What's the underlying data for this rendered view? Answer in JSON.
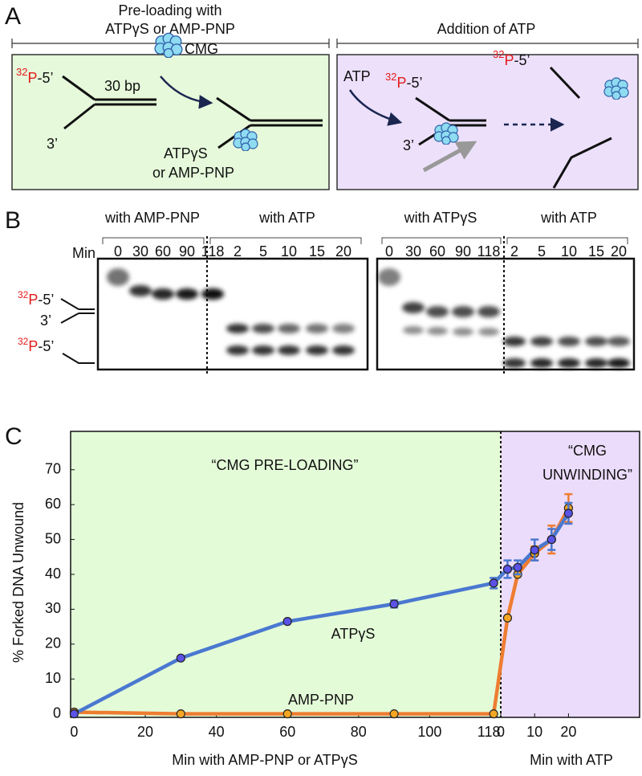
{
  "panel_a": {
    "letter": "A",
    "left_header": [
      "Pre-loading with",
      "ATPγS or AMP-PNP"
    ],
    "right_header": "Addition of ATP",
    "substrate_label": {
      "isotope": "32",
      "element": "P",
      "end": "-5’"
    },
    "duplex_length": "30 bp",
    "three_prime": "3’",
    "cmg": "CMG",
    "nucleotide": [
      "ATPγS",
      "or AMP-PNP"
    ],
    "atp": "ATP",
    "unwinding_label": {
      "isotope": "32",
      "element": "P",
      "end": "-5’"
    },
    "unwinding_three_prime": "3’",
    "product_label": {
      "isotope": "32",
      "element": "P",
      "end": "-5’"
    }
  },
  "panel_b": {
    "letter": "B",
    "min_label": "Min",
    "fork_label": {
      "isotope": "32",
      "element": "P",
      "end": "-5’"
    },
    "fork_three_prime": "3’",
    "product_label": {
      "isotope": "32",
      "element": "P",
      "end": "-5’"
    },
    "gels": [
      {
        "pre_label": "with AMP-PNP",
        "atp_label": "with ATP",
        "pre_lanes": [
          0,
          30,
          60,
          90,
          118
        ],
        "atp_lanes": [
          2,
          5,
          10,
          15,
          20
        ]
      },
      {
        "pre_label": "with ATPγS",
        "atp_label": "with ATP",
        "pre_lanes": [
          0,
          30,
          60,
          90,
          118
        ],
        "atp_lanes": [
          2,
          5,
          10,
          15,
          20
        ]
      }
    ]
  },
  "panel_c": {
    "letter": "C"
  },
  "chart_data": {
    "type": "line",
    "ylabel": "% Forked DNA Unwound",
    "xlabel": "Min with AMP-PNP or ATPγS",
    "x2label": "Min with ATP",
    "ylim": [
      -1,
      81
    ],
    "yticks": [
      0,
      10,
      20,
      30,
      40,
      50,
      60,
      70
    ],
    "xlim": [
      -1,
      120
    ],
    "xticks": [
      0,
      20,
      40,
      60,
      80,
      100,
      118
    ],
    "x2lim": [
      0,
      41
    ],
    "x2ticks": [
      0,
      10,
      20
    ],
    "regions": [
      {
        "label": [
          "“CMG PRE-LOADING”"
        ],
        "color": "#e4fbd8"
      },
      {
        "label": [
          "“CMG",
          "UNWINDING”"
        ],
        "color": "#ecdcfb"
      }
    ],
    "series": [
      {
        "name": "ATPγS",
        "color": "#4a78d0",
        "marker_color": "#5b52e6",
        "pre": {
          "x": [
            0,
            30,
            60,
            90,
            118
          ],
          "values": [
            0,
            16,
            26.5,
            31.5,
            37.5
          ],
          "errors": [
            null,
            null,
            null,
            1,
            1.5
          ]
        },
        "atp": {
          "x": [
            2,
            5,
            10,
            15,
            20
          ],
          "values": [
            41.5,
            42,
            47,
            50,
            57.5
          ],
          "errors": [
            2.5,
            2,
            3,
            3,
            3
          ]
        }
      },
      {
        "name": "AMP-PNP",
        "color": "#ee7d32",
        "marker_color": "#f5a623",
        "pre": {
          "x": [
            0,
            30,
            60,
            90,
            118
          ],
          "values": [
            0.5,
            0,
            0,
            0,
            0
          ],
          "errors": [
            null,
            null,
            null,
            null,
            null
          ]
        },
        "atp": {
          "x": [
            2,
            5,
            10,
            15,
            20
          ],
          "values": [
            27.5,
            40,
            46,
            50,
            59
          ],
          "errors": [
            null,
            null,
            2,
            4,
            4
          ]
        }
      }
    ]
  }
}
